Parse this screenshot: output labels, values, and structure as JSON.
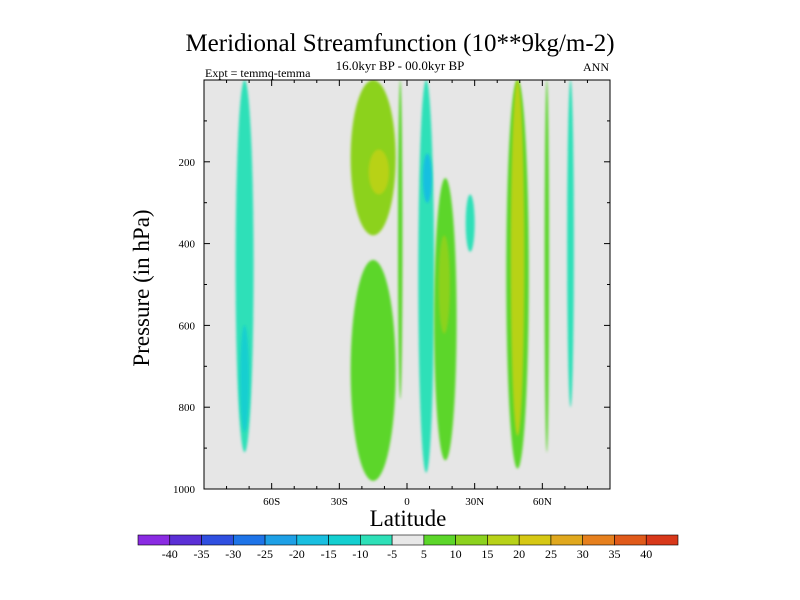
{
  "chart_data": {
    "type": "heatmap",
    "title": "Meridional Streamfunction (10**9kg/m-2)",
    "subtitle": "16.0kyr BP - 00.0kyr BP",
    "left_label": "Expt = temmq-temma",
    "right_label": "ANN",
    "xlabel": "Latitude",
    "ylabel": "Pressure (in hPa)",
    "xlim": [
      -90,
      90
    ],
    "ylim": [
      1000,
      0
    ],
    "x_ticks": [
      -60,
      -30,
      0,
      30,
      60
    ],
    "x_tick_labels": [
      "60S",
      "30S",
      "0",
      "30N",
      "60N"
    ],
    "y_ticks": [
      200,
      400,
      600,
      800,
      1000
    ],
    "y_tick_labels": [
      "200",
      "400",
      "600",
      "800",
      "1000"
    ],
    "colorbar": {
      "levels": [
        -40,
        -35,
        -30,
        -25,
        -20,
        -15,
        -10,
        -5,
        5,
        10,
        15,
        20,
        25,
        30,
        35,
        40
      ],
      "labels": [
        "-40",
        "-35",
        "-30",
        "-25",
        "-20",
        "-15",
        "-10",
        "-5",
        "5",
        "10",
        "15",
        "20",
        "25",
        "30",
        "35",
        "40"
      ],
      "colors": [
        "#8a2be2",
        "#5b2fd6",
        "#2f4fe0",
        "#1e74e8",
        "#1ea0e6",
        "#19bfe0",
        "#14cfd0",
        "#2ee0b8",
        "#e8e8e8",
        "#5cd62a",
        "#8cd21e",
        "#b8d218",
        "#d6c814",
        "#e0a81e",
        "#e6801e",
        "#e05a1a",
        "#d8381a"
      ]
    },
    "regions": [
      {
        "label": "band near 72S",
        "x": [
          -76,
          -68
        ],
        "y": [
          0,
          910
        ],
        "value": -7
      },
      {
        "label": "core near 72S",
        "x": [
          -74,
          -70
        ],
        "y": [
          600,
          860
        ],
        "value": -12
      },
      {
        "label": "upper cell near 13S",
        "x": [
          -25,
          -5
        ],
        "y": [
          0,
          380
        ],
        "value": 10
      },
      {
        "label": "upper core near 13S",
        "x": [
          -17,
          -8
        ],
        "y": [
          170,
          280
        ],
        "value": 17
      },
      {
        "label": "lower cell near 13S",
        "x": [
          -25,
          -5
        ],
        "y": [
          440,
          980
        ],
        "value": 8
      },
      {
        "label": "band near 3S",
        "x": [
          -4,
          -2
        ],
        "y": [
          0,
          780
        ],
        "value": 8
      },
      {
        "label": "band near 9N",
        "x": [
          5,
          12
        ],
        "y": [
          0,
          960
        ],
        "value": -8
      },
      {
        "label": "core near 9N",
        "x": [
          7,
          11
        ],
        "y": [
          180,
          300
        ],
        "value": -17
      },
      {
        "label": "cell near 16N",
        "x": [
          12,
          22
        ],
        "y": [
          240,
          930
        ],
        "value": 7
      },
      {
        "label": "core near 16N",
        "x": [
          14,
          19
        ],
        "y": [
          380,
          620
        ],
        "value": 13
      },
      {
        "label": "band near 48N",
        "x": [
          44,
          54
        ],
        "y": [
          0,
          950
        ],
        "value": 8
      },
      {
        "label": "core near 48N",
        "x": [
          46,
          52
        ],
        "y": [
          0,
          870
        ],
        "value": 18
      },
      {
        "label": "band near 62N",
        "x": [
          61,
          63
        ],
        "y": [
          0,
          910
        ],
        "value": 6
      },
      {
        "label": "band near 72N",
        "x": [
          71,
          74
        ],
        "y": [
          0,
          800
        ],
        "value": -7
      },
      {
        "label": "blob near 28N",
        "x": [
          26,
          30
        ],
        "y": [
          280,
          420
        ],
        "value": -6
      }
    ]
  }
}
